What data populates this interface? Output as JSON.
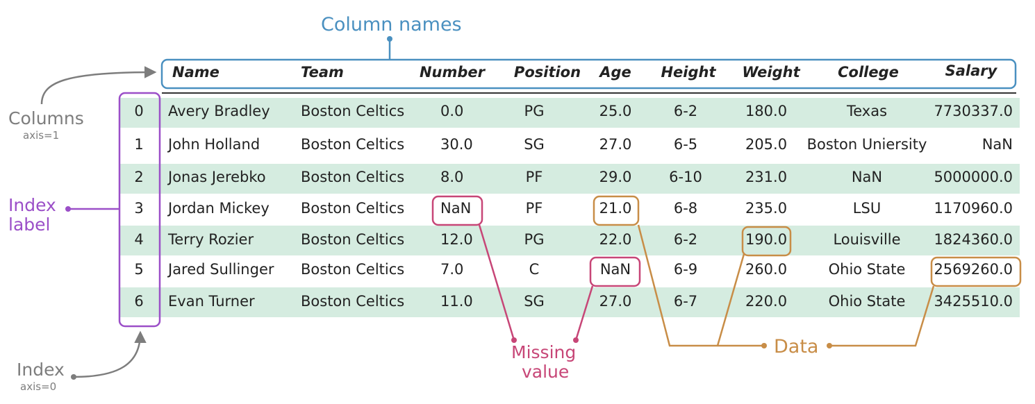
{
  "title": "Column names",
  "labels": {
    "columns": "Columns",
    "columns_axis": "axis=1",
    "index": "Index",
    "index_axis": "axis=0",
    "index_label_line1": "Index",
    "index_label_line2": "label",
    "missing_line1": "Missing",
    "missing_line2": "value",
    "data": "Data"
  },
  "colors": {
    "column_names": "#4a90c0",
    "axis_labels": "#7d7d7d",
    "index_label": "#9b4fc8",
    "missing_value": "#c74677",
    "data": "#c88d47",
    "stripe": "#d5ece0"
  },
  "table": {
    "columns": [
      "Name",
      "Team",
      "Number",
      "Position",
      "Age",
      "Height",
      "Weight",
      "College",
      "Salary"
    ],
    "index": [
      "0",
      "1",
      "2",
      "3",
      "4",
      "5",
      "6"
    ],
    "rows": [
      [
        "Avery Bradley",
        "Boston Celtics",
        "0.0",
        "PG",
        "25.0",
        "6-2",
        "180.0",
        "Texas",
        "7730337.0"
      ],
      [
        "John Holland",
        "Boston Celtics",
        "30.0",
        "SG",
        "27.0",
        "6-5",
        "205.0",
        "Boston Uniersity",
        "NaN"
      ],
      [
        "Jonas Jerebko",
        "Boston Celtics",
        "8.0",
        "PF",
        "29.0",
        "6-10",
        "231.0",
        "NaN",
        "5000000.0"
      ],
      [
        "Jordan Mickey",
        "Boston Celtics",
        "NaN",
        "PF",
        "21.0",
        "6-8",
        "235.0",
        "LSU",
        "1170960.0"
      ],
      [
        "Terry Rozier",
        "Boston Celtics",
        "12.0",
        "PG",
        "22.0",
        "6-2",
        "190.0",
        "Louisville",
        "1824360.0"
      ],
      [
        "Jared Sullinger",
        "Boston Celtics",
        "7.0",
        "C",
        "NaN",
        "6-9",
        "260.0",
        "Ohio State",
        "2569260.0"
      ],
      [
        "Evan Turner",
        "Boston Celtics",
        "11.0",
        "SG",
        "27.0",
        "6-7",
        "220.0",
        "Ohio State",
        "3425510.0"
      ]
    ]
  }
}
